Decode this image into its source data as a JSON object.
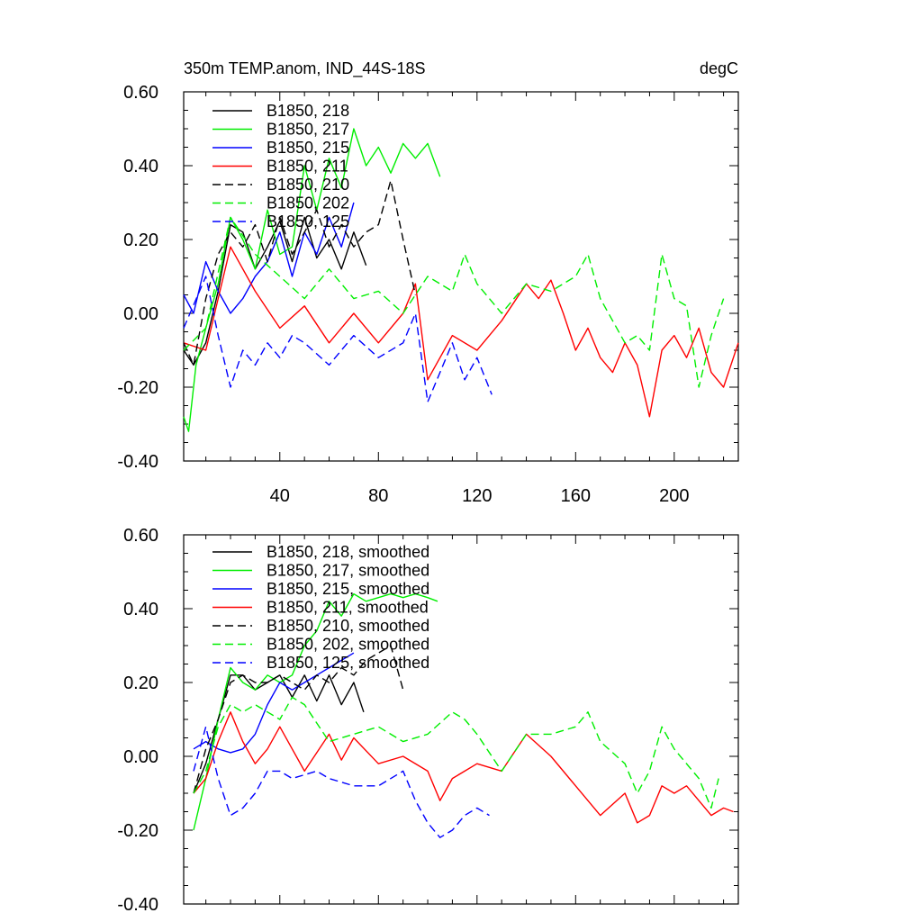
{
  "header": {
    "title": "350m TEMP.anom, IND_44S-18S",
    "units": "degC"
  },
  "chart_data": [
    {
      "type": "line",
      "title": "350m TEMP.anom, IND_44S-18S",
      "units": "degC",
      "xlim": [
        1,
        226
      ],
      "ylim": [
        -0.4,
        0.6
      ],
      "yticks": [
        -0.4,
        -0.2,
        0.0,
        0.2,
        0.4,
        0.6
      ],
      "ytick_labels": [
        "-0.40",
        "-0.20",
        "0.00",
        "0.20",
        "0.40",
        "0.60"
      ],
      "xticks": [
        40,
        80,
        120,
        160,
        200
      ],
      "xtick_labels": [
        "40",
        "80",
        "120",
        "160",
        "200"
      ],
      "legend": [
        "B1850, 218",
        "B1850, 217",
        "B1850, 215",
        "B1850, 211",
        "B1850, 210",
        "B1850, 202",
        "B1850, 125"
      ],
      "series": [
        {
          "name": "B1850, 218",
          "color": "#000000",
          "dash": false,
          "x": [
            1,
            5,
            10,
            15,
            20,
            25,
            30,
            35,
            40,
            45,
            50,
            55,
            60,
            65,
            70,
            75
          ],
          "y": [
            -0.1,
            -0.14,
            -0.08,
            0.06,
            0.24,
            0.22,
            0.12,
            0.18,
            0.25,
            0.14,
            0.26,
            0.15,
            0.2,
            0.12,
            0.22,
            0.13
          ]
        },
        {
          "name": "B1850, 217",
          "color": "#00ee00",
          "dash": false,
          "x": [
            1,
            3,
            6,
            10,
            15,
            20,
            25,
            30,
            35,
            40,
            45,
            50,
            55,
            60,
            65,
            70,
            75,
            80,
            85,
            90,
            95,
            100,
            105
          ],
          "y": [
            -0.28,
            -0.32,
            -0.14,
            -0.04,
            0.08,
            0.26,
            0.2,
            0.12,
            0.28,
            0.16,
            0.18,
            0.4,
            0.28,
            0.42,
            0.34,
            0.5,
            0.4,
            0.45,
            0.38,
            0.46,
            0.42,
            0.46,
            0.37
          ]
        },
        {
          "name": "B1850, 215",
          "color": "#0000ff",
          "dash": false,
          "x": [
            1,
            5,
            10,
            15,
            20,
            25,
            30,
            35,
            40,
            45,
            50,
            55,
            60,
            65,
            70
          ],
          "y": [
            0.05,
            0.0,
            0.14,
            0.06,
            0.0,
            0.04,
            0.1,
            0.14,
            0.22,
            0.1,
            0.22,
            0.16,
            0.26,
            0.18,
            0.3
          ]
        },
        {
          "name": "B1850, 211",
          "color": "#ff0000",
          "dash": false,
          "x": [
            1,
            10,
            20,
            30,
            40,
            50,
            60,
            70,
            80,
            90,
            95,
            100,
            110,
            120,
            130,
            140,
            145,
            150,
            155,
            160,
            165,
            170,
            175,
            180,
            185,
            190,
            195,
            200,
            205,
            210,
            215,
            220,
            226
          ],
          "y": [
            -0.08,
            -0.1,
            0.18,
            0.06,
            -0.04,
            0.02,
            -0.08,
            0.0,
            -0.08,
            0.0,
            0.08,
            -0.18,
            -0.06,
            -0.1,
            -0.02,
            0.08,
            0.04,
            0.09,
            0.0,
            -0.1,
            -0.04,
            -0.12,
            -0.16,
            -0.08,
            -0.14,
            -0.28,
            -0.1,
            -0.06,
            -0.12,
            -0.04,
            -0.16,
            -0.2,
            -0.08
          ]
        },
        {
          "name": "B1850, 210",
          "color": "#000000",
          "dash": true,
          "x": [
            1,
            5,
            10,
            15,
            20,
            25,
            30,
            35,
            40,
            45,
            50,
            55,
            60,
            65,
            70,
            75,
            80,
            85,
            90,
            95
          ],
          "y": [
            -0.08,
            -0.14,
            0.04,
            0.16,
            0.22,
            0.18,
            0.24,
            0.14,
            0.26,
            0.16,
            0.22,
            0.28,
            0.18,
            0.24,
            0.18,
            0.22,
            0.24,
            0.36,
            0.2,
            0.05
          ]
        },
        {
          "name": "B1850, 202",
          "color": "#00ee00",
          "dash": true,
          "x": [
            1,
            10,
            20,
            30,
            40,
            50,
            60,
            70,
            80,
            90,
            100,
            110,
            115,
            120,
            130,
            140,
            150,
            160,
            165,
            170,
            180,
            185,
            190,
            195,
            200,
            205,
            210,
            215,
            220
          ],
          "y": [
            -0.1,
            -0.04,
            0.26,
            0.16,
            0.1,
            0.04,
            0.12,
            0.04,
            0.06,
            0.0,
            0.1,
            0.06,
            0.16,
            0.08,
            0.0,
            0.08,
            0.06,
            0.1,
            0.16,
            0.04,
            -0.08,
            -0.06,
            -0.1,
            0.16,
            0.04,
            0.02,
            -0.2,
            -0.06,
            0.04
          ]
        },
        {
          "name": "B1850, 125",
          "color": "#0000ff",
          "dash": true,
          "x": [
            1,
            10,
            15,
            20,
            25,
            30,
            35,
            40,
            45,
            50,
            60,
            70,
            80,
            90,
            95,
            100,
            105,
            110,
            115,
            120,
            126
          ],
          "y": [
            -0.04,
            0.1,
            -0.06,
            -0.2,
            -0.1,
            -0.14,
            -0.08,
            -0.12,
            -0.06,
            -0.08,
            -0.14,
            -0.06,
            -0.12,
            -0.08,
            0.0,
            -0.24,
            -0.16,
            -0.08,
            -0.18,
            -0.12,
            -0.22
          ]
        }
      ]
    },
    {
      "type": "line",
      "title": "",
      "xlim": [
        1,
        226
      ],
      "ylim": [
        -0.4,
        0.6
      ],
      "yticks": [
        -0.4,
        -0.2,
        0.0,
        0.2,
        0.4,
        0.6
      ],
      "ytick_labels": [
        "-0.40",
        "-0.20",
        "0.00",
        "0.20",
        "0.40",
        "0.60"
      ],
      "xticks": [
        40,
        80,
        120,
        160,
        200
      ],
      "xtick_labels": [],
      "legend": [
        "B1850, 218, smoothed",
        "B1850, 217, smoothed",
        "B1850, 215, smoothed",
        "B1850, 211, smoothed",
        "B1850, 210, smoothed",
        "B1850, 202, smoothed",
        "B1850, 125, smoothed"
      ],
      "series": [
        {
          "name": "B1850, 218, smoothed",
          "color": "#000000",
          "dash": false,
          "x": [
            5,
            10,
            15,
            20,
            25,
            30,
            35,
            40,
            45,
            50,
            55,
            60,
            65,
            70,
            74
          ],
          "y": [
            -0.1,
            -0.02,
            0.1,
            0.22,
            0.22,
            0.18,
            0.2,
            0.22,
            0.16,
            0.22,
            0.15,
            0.22,
            0.14,
            0.2,
            0.12
          ]
        },
        {
          "name": "B1850, 217, smoothed",
          "color": "#00ee00",
          "dash": false,
          "x": [
            5,
            10,
            15,
            20,
            25,
            30,
            35,
            40,
            45,
            50,
            55,
            60,
            65,
            70,
            75,
            80,
            85,
            90,
            95,
            100,
            104
          ],
          "y": [
            -0.2,
            -0.06,
            0.1,
            0.24,
            0.2,
            0.18,
            0.22,
            0.2,
            0.22,
            0.3,
            0.34,
            0.42,
            0.38,
            0.44,
            0.42,
            0.43,
            0.44,
            0.43,
            0.44,
            0.43,
            0.42
          ]
        },
        {
          "name": "B1850, 215, smoothed",
          "color": "#0000ff",
          "dash": false,
          "x": [
            5,
            10,
            15,
            20,
            25,
            30,
            35,
            40,
            45,
            50,
            55,
            60,
            65,
            70
          ],
          "y": [
            0.02,
            0.04,
            0.02,
            0.01,
            0.02,
            0.06,
            0.14,
            0.2,
            0.18,
            0.2,
            0.22,
            0.24,
            0.26,
            0.28
          ]
        },
        {
          "name": "B1850, 211, smoothed",
          "color": "#ff0000",
          "dash": false,
          "x": [
            5,
            10,
            15,
            20,
            25,
            30,
            35,
            40,
            45,
            50,
            60,
            65,
            70,
            80,
            90,
            100,
            105,
            110,
            120,
            130,
            140,
            150,
            160,
            165,
            170,
            180,
            185,
            190,
            195,
            200,
            205,
            210,
            215,
            220,
            224
          ],
          "y": [
            -0.1,
            -0.06,
            0.04,
            0.12,
            0.04,
            -0.02,
            0.02,
            0.08,
            0.02,
            -0.04,
            0.06,
            -0.01,
            0.05,
            -0.02,
            0.0,
            -0.04,
            -0.12,
            -0.06,
            -0.02,
            -0.04,
            0.06,
            0.0,
            -0.08,
            -0.12,
            -0.16,
            -0.1,
            -0.18,
            -0.16,
            -0.08,
            -0.1,
            -0.08,
            -0.12,
            -0.16,
            -0.14,
            -0.15
          ]
        },
        {
          "name": "B1850, 210, smoothed",
          "color": "#000000",
          "dash": true,
          "x": [
            5,
            10,
            15,
            20,
            25,
            30,
            35,
            40,
            45,
            50,
            55,
            60,
            65,
            70,
            75,
            80,
            85,
            90
          ],
          "y": [
            -0.1,
            0.02,
            0.1,
            0.2,
            0.22,
            0.2,
            0.2,
            0.22,
            0.2,
            0.18,
            0.22,
            0.2,
            0.24,
            0.22,
            0.26,
            0.28,
            0.3,
            0.18
          ]
        },
        {
          "name": "B1850, 202, smoothed",
          "color": "#00ee00",
          "dash": true,
          "x": [
            5,
            10,
            15,
            20,
            25,
            30,
            35,
            40,
            45,
            50,
            60,
            70,
            80,
            90,
            100,
            110,
            115,
            120,
            130,
            140,
            150,
            160,
            165,
            170,
            180,
            185,
            190,
            195,
            200,
            205,
            210,
            215,
            218
          ],
          "y": [
            -0.1,
            -0.04,
            0.08,
            0.14,
            0.12,
            0.14,
            0.12,
            0.1,
            0.16,
            0.14,
            0.04,
            0.06,
            0.08,
            0.04,
            0.06,
            0.12,
            0.1,
            0.06,
            -0.04,
            0.06,
            0.06,
            0.08,
            0.12,
            0.04,
            -0.02,
            -0.1,
            -0.04,
            0.08,
            0.02,
            -0.02,
            -0.06,
            -0.14,
            -0.06
          ]
        },
        {
          "name": "B1850, 125, smoothed",
          "color": "#0000ff",
          "dash": true,
          "x": [
            5,
            10,
            15,
            20,
            25,
            30,
            35,
            40,
            45,
            50,
            55,
            60,
            70,
            80,
            90,
            95,
            100,
            105,
            110,
            115,
            120,
            125
          ],
          "y": [
            -0.04,
            0.08,
            -0.06,
            -0.16,
            -0.14,
            -0.1,
            -0.04,
            -0.04,
            -0.06,
            -0.05,
            -0.04,
            -0.06,
            -0.08,
            -0.08,
            -0.04,
            -0.12,
            -0.18,
            -0.22,
            -0.2,
            -0.16,
            -0.14,
            -0.16
          ]
        }
      ]
    }
  ]
}
